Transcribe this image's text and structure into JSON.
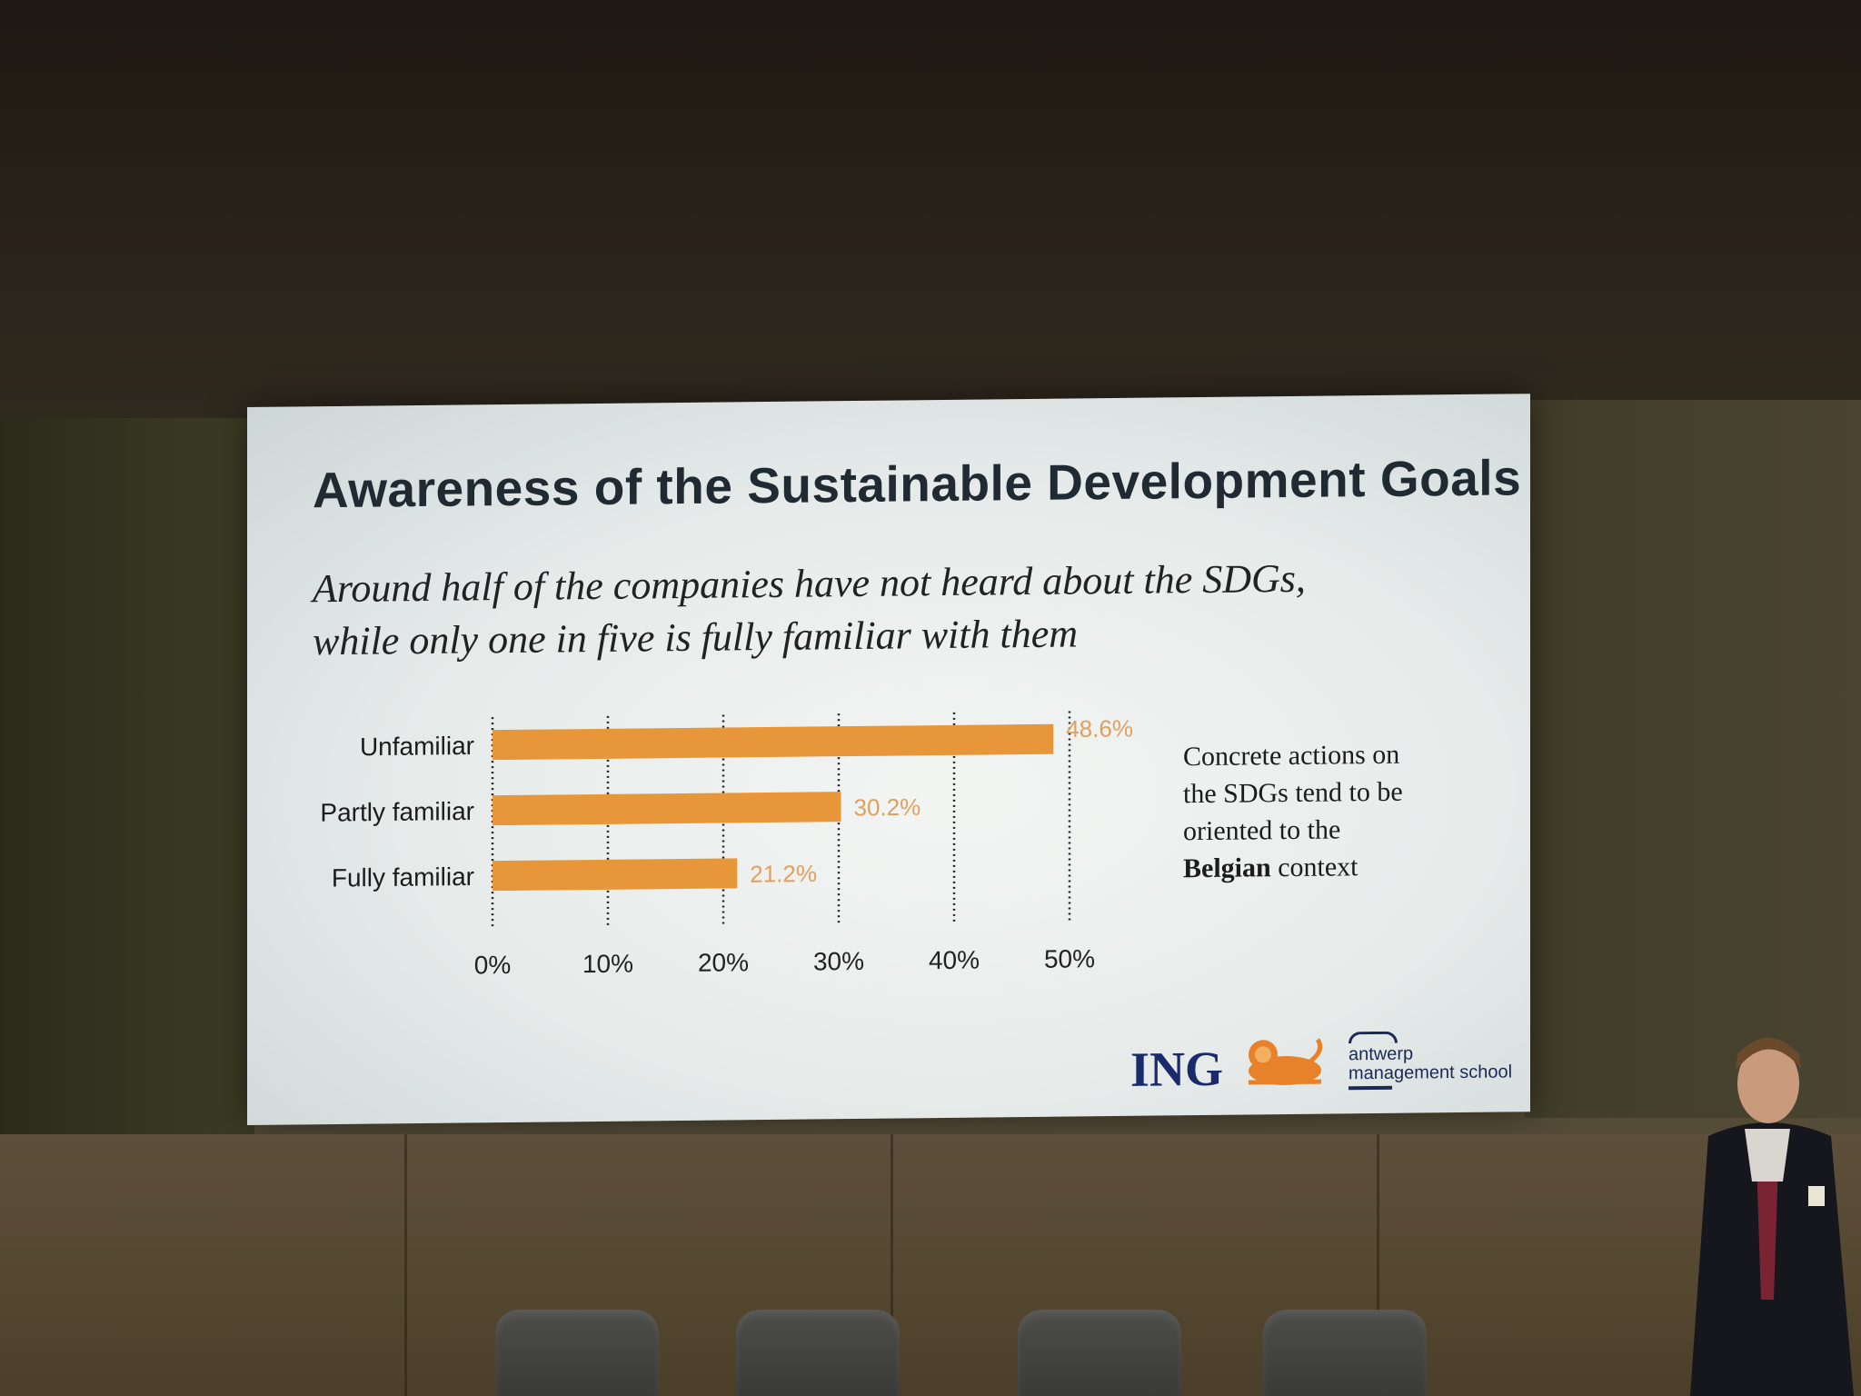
{
  "slide": {
    "title": "Awareness of the Sustainable Development Goals",
    "subtitle_line1": "Around half of the companies have not heard about the SDGs,",
    "subtitle_line2": "while only one in five is fully familiar with them",
    "side_note": {
      "text_line1": "Concrete actions on",
      "text_line2": "the SDGs tend to be",
      "text_line3": "oriented to the",
      "text_bold": "Belgian",
      "text_end": " context"
    },
    "logos": {
      "ing": "ING",
      "ams_line1": "antwerp",
      "ams_line2": "management school"
    }
  },
  "chart_data": {
    "type": "bar",
    "orientation": "horizontal",
    "categories": [
      "Unfamiliar",
      "Partly familiar",
      "Fully familiar"
    ],
    "values": [
      48.6,
      30.2,
      21.2
    ],
    "data_labels": [
      "48.6%",
      "30.2%",
      "21.2%"
    ],
    "x_ticks": [
      "0%",
      "10%",
      "20%",
      "30%",
      "40%",
      "50%"
    ],
    "xlim": [
      0,
      50
    ],
    "grid": "dotted vertical",
    "bar_color": "#e8963a",
    "label_color": "#e0a060"
  }
}
